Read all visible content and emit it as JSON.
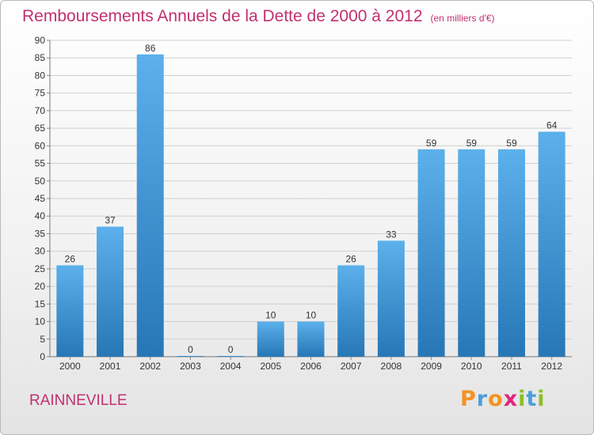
{
  "header": {
    "title": "Remboursements Annuels de la Dette de 2000 à 2012",
    "unit": "(en milliers d'€)"
  },
  "footer": {
    "commune": "RAINNEVILLE",
    "brand": "Proxiti"
  },
  "colors": {
    "title": "#c1306f",
    "bar_top": "#5cb0eb",
    "bar_bottom": "#2777b6",
    "grid": "#cfcfcf",
    "brand_letters": [
      "#f39321",
      "#4a9fd8",
      "#f39321",
      "#e2247a",
      "#8cbf26",
      "#4a9fd8",
      "#8cbf26"
    ]
  },
  "chart_data": {
    "type": "bar",
    "title": "Remboursements Annuels de la Dette de 2000 à 2012",
    "subtitle": "(en milliers d'€)",
    "categories": [
      "2000",
      "2001",
      "2002",
      "2003",
      "2004",
      "2005",
      "2006",
      "2007",
      "2008",
      "2009",
      "2010",
      "2011",
      "2012"
    ],
    "values": [
      26,
      37,
      86,
      0,
      0,
      10,
      10,
      26,
      33,
      59,
      59,
      59,
      64
    ],
    "ylim": [
      0,
      90
    ],
    "yticks": [
      0,
      5,
      10,
      15,
      20,
      25,
      30,
      35,
      40,
      45,
      50,
      55,
      60,
      65,
      70,
      75,
      80,
      85,
      90
    ],
    "grid": true,
    "legend": "none"
  }
}
